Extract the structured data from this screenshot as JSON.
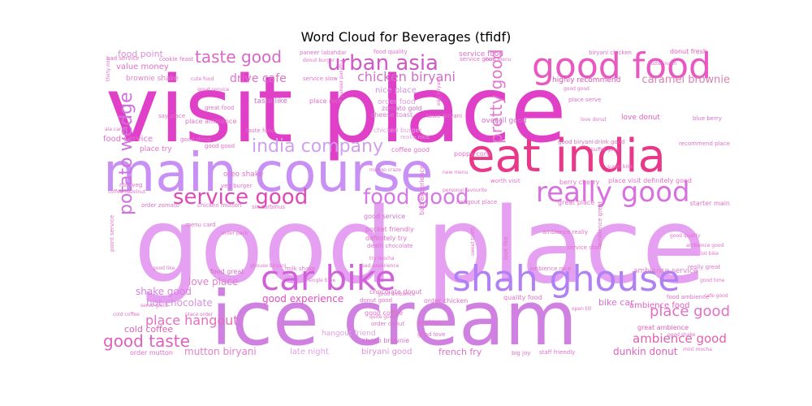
{
  "title": "Word Cloud for Beverages (tfidf)",
  "palette": {
    "magenta": "#e040c8",
    "violet": "#c282f2",
    "lavender": "#e6a6f0",
    "pink": "#f07cc0",
    "purple": "#b078f0",
    "deep_pink": "#e8388a",
    "rose": "#d86aa8",
    "lilac": "#d8a0e8"
  },
  "words": [
    {
      "text": "visit place",
      "weight": 1.0,
      "color": "#e040c8"
    },
    {
      "text": "good place",
      "weight": 1.0,
      "color": "#e6a0f2"
    },
    {
      "text": "ice cream",
      "weight": 0.92,
      "color": "#d080e0"
    },
    {
      "text": "main course",
      "weight": 0.62,
      "color": "#c890f4"
    },
    {
      "text": "eat india",
      "weight": 0.56,
      "color": "#e8388a"
    },
    {
      "text": "good food",
      "weight": 0.48,
      "color": "#e858c0"
    },
    {
      "text": "shah ghouse",
      "weight": 0.47,
      "color": "#b080f4"
    },
    {
      "text": "car bike",
      "weight": 0.45,
      "color": "#d060d8"
    },
    {
      "text": "really good",
      "weight": 0.37,
      "color": "#d870e0"
    },
    {
      "text": "service good",
      "weight": 0.3,
      "color": "#e048b8"
    },
    {
      "text": "food good",
      "weight": 0.3,
      "color": "#d878e8"
    },
    {
      "text": "urban asia",
      "weight": 0.28,
      "color": "#d058c8"
    },
    {
      "text": "india company",
      "weight": 0.23,
      "color": "#d0a0ec"
    },
    {
      "text": "potato wedge",
      "weight": 0.23,
      "color": "#d070e0"
    },
    {
      "text": "taste good",
      "weight": 0.22,
      "color": "#d868c8"
    },
    {
      "text": "good taste",
      "weight": 0.2,
      "color": "#e060c0"
    },
    {
      "text": "pretty good",
      "weight": 0.18,
      "color": "#e078d0"
    },
    {
      "text": "chicken biryani",
      "weight": 0.17,
      "color": "#d070c8"
    },
    {
      "text": "place good",
      "weight": 0.17,
      "color": "#e070c8"
    },
    {
      "text": "caramel brownie",
      "weight": 0.13,
      "color": "#d880b0"
    },
    {
      "text": "ambience good",
      "weight": 0.14,
      "color": "#e060b0"
    },
    {
      "text": "place hangout",
      "weight": 0.14,
      "color": "#e070c0"
    },
    {
      "text": "love place",
      "weight": 0.12,
      "color": "#e080d0"
    },
    {
      "text": "drive cafe",
      "weight": 0.13,
      "color": "#e070c8"
    },
    {
      "text": "good experience",
      "weight": 0.11,
      "color": "#e050c0"
    },
    {
      "text": "shake good",
      "weight": 0.11,
      "color": "#d880e0"
    },
    {
      "text": "hot chocolate",
      "weight": 0.11,
      "color": "#d890e0"
    },
    {
      "text": "cold coffee",
      "weight": 0.1,
      "color": "#e060b8"
    },
    {
      "text": "mutton biryani",
      "weight": 0.11,
      "color": "#e080c8"
    },
    {
      "text": "dunkin donut",
      "weight": 0.11,
      "color": "#e060c0"
    },
    {
      "text": "french fry",
      "weight": 0.09,
      "color": "#e070c8"
    },
    {
      "text": "biryani good",
      "weight": 0.09,
      "color": "#e090d8"
    },
    {
      "text": "late night",
      "weight": 0.09,
      "color": "#e0a0e8"
    },
    {
      "text": "bike car",
      "weight": 0.09,
      "color": "#d870d0"
    },
    {
      "text": "ambience food",
      "weight": 0.08,
      "color": "#e060c0"
    },
    {
      "text": "food point",
      "weight": 0.08,
      "color": "#d890d8"
    },
    {
      "text": "value money",
      "weight": 0.07,
      "color": "#e070c8"
    },
    {
      "text": "brownie shake",
      "weight": 0.07,
      "color": "#e080c8"
    },
    {
      "text": "nice place",
      "weight": 0.07,
      "color": "#d090e0"
    },
    {
      "text": "order food",
      "weight": 0.07,
      "color": "#e0a0e0"
    },
    {
      "text": "taste like",
      "weight": 0.06,
      "color": "#d070d0"
    },
    {
      "text": "place nice",
      "weight": 0.06,
      "color": "#e070c0"
    },
    {
      "text": "cheese toast",
      "weight": 0.06,
      "color": "#d080d0"
    },
    {
      "text": "zomato gold",
      "weight": 0.06,
      "color": "#d070c8"
    },
    {
      "text": "chicken burger",
      "weight": 0.06,
      "color": "#e0a0e0"
    },
    {
      "text": "really nice",
      "weight": 0.05,
      "color": "#e0a0e0"
    },
    {
      "text": "coffee good",
      "weight": 0.06,
      "color": "#e070c8"
    },
    {
      "text": "overall good",
      "weight": 0.06,
      "color": "#d070d0"
    },
    {
      "text": "good biryani",
      "weight": 0.05,
      "color": "#d070c8"
    },
    {
      "text": "drink good",
      "weight": 0.05,
      "color": "#e070c0"
    },
    {
      "text": "donut fresh",
      "weight": 0.06,
      "color": "#e060b8"
    },
    {
      "text": "highly recommend",
      "weight": 0.06,
      "color": "#e050b0"
    },
    {
      "text": "love donut",
      "weight": 0.06,
      "color": "#e060c0"
    },
    {
      "text": "blue berry",
      "weight": 0.05,
      "color": "#d870d0"
    },
    {
      "text": "food service",
      "weight": 0.06,
      "color": "#e070c8"
    },
    {
      "text": "place try",
      "weight": 0.05,
      "color": "#e070c8"
    },
    {
      "text": "service food",
      "weight": 0.06,
      "color": "#e070c8"
    },
    {
      "text": "food quality",
      "weight": 0.05,
      "color": "#e070c8"
    },
    {
      "text": "quality food",
      "weight": 0.05,
      "color": "#e070c8"
    },
    {
      "text": "ambience service",
      "weight": 0.05,
      "color": "#e080c8"
    },
    {
      "text": "ambience nice",
      "weight": 0.04,
      "color": "#e070c0"
    },
    {
      "text": "great ambience",
      "weight": 0.05,
      "color": "#e060b8"
    },
    {
      "text": "ambience great",
      "weight": 0.04,
      "color": "#e070c0"
    },
    {
      "text": "food great",
      "weight": 0.05,
      "color": "#d070c0"
    },
    {
      "text": "great food",
      "weight": 0.04,
      "color": "#e070c0"
    },
    {
      "text": "great place",
      "weight": 0.05,
      "color": "#e070c8"
    },
    {
      "text": "place visit definitely good",
      "weight": 0.05,
      "color": "#e070c8"
    },
    {
      "text": "starter main",
      "weight": 0.05,
      "color": "#e070c8"
    },
    {
      "text": "recommend place",
      "weight": 0.05,
      "color": "#e070c8"
    },
    {
      "text": "berry cherry",
      "weight": 0.05,
      "color": "#e070c8"
    },
    {
      "text": "poppy corn",
      "weight": 0.05,
      "color": "#e070c8"
    },
    {
      "text": "worth visit",
      "weight": 0.04,
      "color": "#e070c8"
    },
    {
      "text": "good service",
      "weight": 0.05,
      "color": "#d070c8"
    },
    {
      "text": "pocket friendly",
      "weight": 0.05,
      "color": "#e070c8"
    },
    {
      "text": "definitely try",
      "weight": 0.05,
      "color": "#e070c8"
    },
    {
      "text": "bad experience",
      "weight": 0.05,
      "color": "#e070c8"
    },
    {
      "text": "chocolate donut",
      "weight": 0.05,
      "color": "#e070c8"
    },
    {
      "text": "order chicken",
      "weight": 0.05,
      "color": "#e070c8"
    },
    {
      "text": "donut good",
      "weight": 0.05,
      "color": "#e070c8"
    },
    {
      "text": "good coffee",
      "weight": 0.05,
      "color": "#e070c8"
    },
    {
      "text": "good try",
      "weight": 0.04,
      "color": "#e070c8"
    },
    {
      "text": "good love",
      "weight": 0.04,
      "color": "#e070c8"
    },
    {
      "text": "good ambience",
      "weight": 0.04,
      "color": "#e070c8"
    },
    {
      "text": "hangout friend",
      "weight": 0.05,
      "color": "#e0a0e0"
    },
    {
      "text": "choco brownie",
      "weight": 0.05,
      "color": "#d070c8"
    },
    {
      "text": "order mutton",
      "weight": 0.05,
      "color": "#e070c8"
    },
    {
      "text": "staff friendly",
      "weight": 0.04,
      "color": "#e070c8"
    },
    {
      "text": "big joy",
      "weight": 0.04,
      "color": "#e070c8"
    },
    {
      "text": "order donut",
      "weight": 0.04,
      "color": "#e070c8"
    },
    {
      "text": "quite good",
      "weight": 0.04,
      "color": "#e070c8"
    },
    {
      "text": "service staff",
      "weight": 0.04,
      "color": "#e070c8"
    },
    {
      "text": "ambience really",
      "weight": 0.04,
      "color": "#e070c8"
    },
    {
      "text": "look like",
      "weight": 0.04,
      "color": "#e070c8"
    },
    {
      "text": "hangout place",
      "weight": 0.04,
      "color": "#e070c8"
    },
    {
      "text": "death chocolate",
      "weight": 0.04,
      "color": "#e070c8"
    },
    {
      "text": "try mocha",
      "weight": 0.04,
      "color": "#e070c8"
    },
    {
      "text": "milk shake",
      "weight": 0.04,
      "color": "#e070c8"
    },
    {
      "text": "ghouse biryani",
      "weight": 0.04,
      "color": "#e070c8"
    },
    {
      "text": "oreo shake",
      "weight": 0.05,
      "color": "#e070c8"
    },
    {
      "text": "veg burger",
      "weight": 0.04,
      "color": "#e070c8"
    },
    {
      "text": "order pack",
      "weight": 0.04,
      "color": "#e070c8"
    },
    {
      "text": "order zomato",
      "weight": 0.04,
      "color": "#e070c8"
    },
    {
      "text": "chicken mutton",
      "weight": 0.04,
      "color": "#e070c8"
    },
    {
      "text": "sin tarbinus",
      "weight": 0.04,
      "color": "#e070c8"
    },
    {
      "text": "coffee hazelnut",
      "weight": 0.04,
      "color": "#e070c8"
    },
    {
      "text": "non veg",
      "weight": 0.04,
      "color": "#e070c8"
    },
    {
      "text": "menu card",
      "weight": 0.04,
      "color": "#e070c8"
    },
    {
      "text": "good thing",
      "weight": 0.04,
      "color": "#e070c8"
    },
    {
      "text": "good good",
      "weight": 0.04,
      "color": "#e070c8"
    },
    {
      "text": "taste food",
      "weight": 0.04,
      "color": "#e070c8"
    },
    {
      "text": "place ambience",
      "weight": 0.04,
      "color": "#e070c8"
    },
    {
      "text": "say place",
      "weight": 0.04,
      "color": "#e070c8"
    },
    {
      "text": "cute food",
      "weight": 0.04,
      "color": "#e070c8"
    },
    {
      "text": "great service",
      "weight": 0.04,
      "color": "#e070c8"
    },
    {
      "text": "bad service",
      "weight": 0.04,
      "color": "#e070c8"
    },
    {
      "text": "cookie feast",
      "weight": 0.04,
      "color": "#e070c8"
    },
    {
      "text": "service slow",
      "weight": 0.04,
      "color": "#e070c8"
    },
    {
      "text": "paneer labahdar",
      "weight": 0.04,
      "color": "#e070c8"
    },
    {
      "text": "donut burger",
      "weight": 0.04,
      "color": "#e070c8"
    },
    {
      "text": "service good",
      "weight": 0.05,
      "color": "#e070c8"
    },
    {
      "text": "item menu",
      "weight": 0.04,
      "color": "#e070c8"
    },
    {
      "text": "biryani chicken",
      "weight": 0.04,
      "color": "#e070c8"
    },
    {
      "text": "good quality",
      "weight": 0.04,
      "color": "#e070c8"
    },
    {
      "text": "ambience good",
      "weight": 0.04,
      "color": "#e070c8"
    },
    {
      "text": "really great",
      "weight": 0.04,
      "color": "#e070c8"
    },
    {
      "text": "food ambience",
      "weight": 0.04,
      "color": "#e070c8"
    },
    {
      "text": "cafe good",
      "weight": 0.04,
      "color": "#e070c8"
    },
    {
      "text": "good shake",
      "weight": 0.04,
      "color": "#e070c8"
    },
    {
      "text": "mint mocha",
      "weight": 0.04,
      "color": "#e070c8"
    },
    {
      "text": "bad experience",
      "weight": 0.04,
      "color": "#e070c8"
    },
    {
      "text": "serve good",
      "weight": 0.04,
      "color": "#e070c8"
    },
    {
      "text": "place order",
      "weight": 0.04,
      "color": "#e070c8"
    },
    {
      "text": "point service",
      "weight": 0.04,
      "color": "#e070c8"
    },
    {
      "text": "good like",
      "weight": 0.04,
      "color": "#e070c8"
    },
    {
      "text": "thirty min",
      "weight": 0.04,
      "color": "#e070c8"
    },
    {
      "text": "ala carte",
      "weight": 0.04,
      "color": "#e070c8"
    },
    {
      "text": "paneer paratha",
      "weight": 0.04,
      "color": "#e070c8"
    },
    {
      "text": "egg biryani",
      "weight": 0.04,
      "color": "#e070c8"
    },
    {
      "text": "taste biryani",
      "weight": 0.04,
      "color": "#e070c8"
    },
    {
      "text": "super bike",
      "weight": 0.04,
      "color": "#e070c8"
    },
    {
      "text": "buffet good",
      "weight": 0.04,
      "color": "#e070c8"
    },
    {
      "text": "place serve",
      "weight": 0.04,
      "color": "#e070c8"
    },
    {
      "text": "good good",
      "weight": 0.04,
      "color": "#e070c8"
    },
    {
      "text": "mango craze",
      "weight": 0.04,
      "color": "#e070c8"
    },
    {
      "text": "personal favourite",
      "weight": 0.04,
      "color": "#e070c8"
    },
    {
      "text": "new menu",
      "weight": 0.04,
      "color": "#e070c8"
    },
    {
      "text": "sweet tooth",
      "weight": 0.04,
      "color": "#e070c8"
    },
    {
      "text": "open till",
      "weight": 0.04,
      "color": "#e070c8"
    },
    {
      "text": "single time",
      "weight": 0.04,
      "color": "#e070c8"
    },
    {
      "text": "good time",
      "weight": 0.04,
      "color": "#e070c8"
    },
    {
      "text": "lot bike",
      "weight": 0.04,
      "color": "#e070c8"
    },
    {
      "text": "butter naan",
      "weight": 0.04,
      "color": "#e070c8"
    },
    {
      "text": "cold coffee",
      "weight": 0.04,
      "color": "#e070c8"
    },
    {
      "text": "love donut",
      "weight": 0.04,
      "color": "#e070c8"
    }
  ]
}
